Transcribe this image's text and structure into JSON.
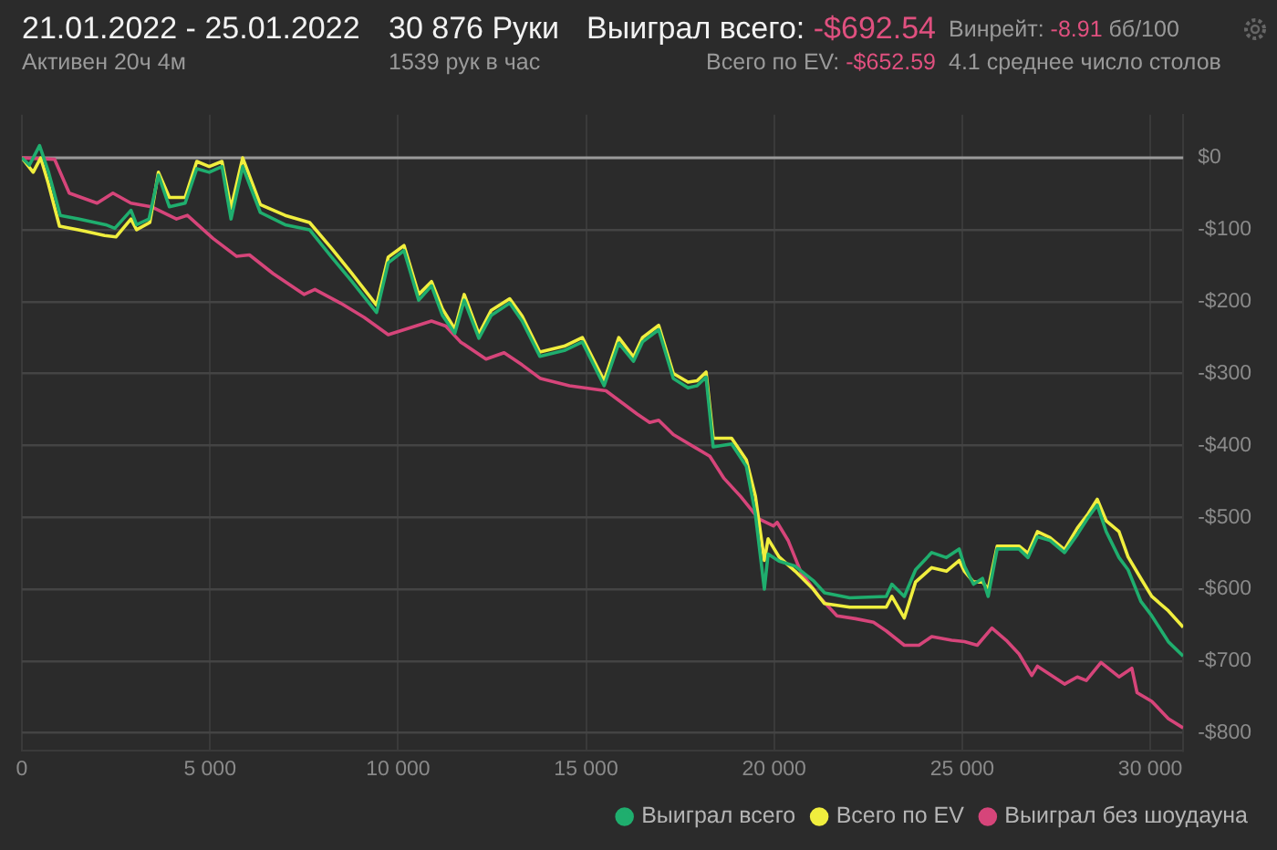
{
  "chart_data": {
    "type": "line",
    "title": "21.01.2022 - 25.01.2022",
    "subtitle": "Активен 20ч 4м",
    "annotations": [
      "30 876 Руки",
      "1539 рук в час",
      "Выиграл всего: -$692.54",
      "Всего по EV: -$652.59",
      "Винрейт: -8.91 бб/100",
      "4.1 среднее число столов"
    ],
    "xlim": [
      0,
      30876
    ],
    "xticks": [
      0,
      {
        "value": 5000,
        "label": "5 000"
      },
      {
        "value": 10000,
        "label": "10 000"
      },
      {
        "value": 15000,
        "label": "15 000"
      },
      {
        "value": 20000,
        "label": "20 000"
      },
      {
        "value": 25000,
        "label": "25 000"
      },
      {
        "value": 30000,
        "label": "30 000"
      }
    ],
    "ylim": [
      -825,
      60
    ],
    "yticks": [
      {
        "value": -800,
        "label": "-$800"
      },
      {
        "value": -700,
        "label": "-$700"
      },
      {
        "value": -600,
        "label": "-$600"
      },
      {
        "value": -500,
        "label": "-$500"
      },
      {
        "value": -400,
        "label": "-$400"
      },
      {
        "value": -300,
        "label": "-$300"
      },
      {
        "value": -200,
        "label": "-$200"
      },
      {
        "value": -100,
        "label": "-$100"
      },
      {
        "value": 0,
        "label": "$0"
      }
    ],
    "grid": true,
    "legend": "bottom right",
    "marker": "none",
    "line_style": "solid",
    "ref_lines": [
      {
        "axis": "y",
        "value": 0,
        "color": "#9a9a9a"
      }
    ],
    "series": [
      {
        "name": "Выиграл всего",
        "color": "#1fae6e",
        "x": [
          0,
          200,
          470,
          710,
          1020,
          1500,
          2230,
          2470,
          2900,
          3050,
          3380,
          3630,
          3920,
          4340,
          4650,
          4980,
          5320,
          5560,
          5870,
          6340,
          7000,
          7650,
          8220,
          8760,
          9430,
          9740,
          10160,
          10550,
          10890,
          11180,
          11510,
          11760,
          12150,
          12480,
          12970,
          13300,
          13770,
          14420,
          14900,
          15480,
          15870,
          16260,
          16500,
          16930,
          17320,
          17710,
          17950,
          18190,
          18380,
          18870,
          19260,
          19500,
          19740,
          19840,
          20130,
          20560,
          21040,
          21340,
          22010,
          22980,
          23130,
          23460,
          23760,
          24190,
          24580,
          24920,
          25060,
          25300,
          25540,
          25690,
          25930,
          26510,
          26750,
          27000,
          27330,
          27720,
          28060,
          28350,
          28590,
          28830,
          29170,
          29410,
          29750,
          30040,
          30480,
          30876
        ],
        "values": [
          0,
          -10,
          17,
          -20,
          -80,
          -85,
          -93,
          -98,
          -73,
          -93,
          -85,
          -24,
          -68,
          -63,
          -15,
          -20,
          -12,
          -85,
          -12,
          -76,
          -93,
          -100,
          -137,
          -171,
          -215,
          -146,
          -129,
          -198,
          -178,
          -219,
          -244,
          -198,
          -251,
          -219,
          -202,
          -227,
          -276,
          -268,
          -256,
          -317,
          -258,
          -283,
          -256,
          -239,
          -307,
          -320,
          -317,
          -305,
          -402,
          -398,
          -429,
          -495,
          -600,
          -551,
          -561,
          -568,
          -588,
          -605,
          -612,
          -610,
          -593,
          -610,
          -573,
          -549,
          -556,
          -544,
          -568,
          -593,
          -585,
          -610,
          -544,
          -544,
          -556,
          -527,
          -532,
          -549,
          -524,
          -500,
          -483,
          -520,
          -556,
          -573,
          -617,
          -637,
          -673,
          -693
        ]
      },
      {
        "name": "Всего по EV",
        "color": "#f0ee3e",
        "x": [
          0,
          300,
          500,
          700,
          1000,
          1500,
          2200,
          2500,
          2900,
          3050,
          3400,
          3630,
          3920,
          4340,
          4650,
          4980,
          5320,
          5560,
          5870,
          6340,
          7000,
          7650,
          8220,
          8760,
          9430,
          9740,
          10160,
          10550,
          10890,
          11180,
          11510,
          11760,
          12150,
          12480,
          12970,
          13300,
          13770,
          14420,
          14900,
          15480,
          15870,
          16260,
          16500,
          16930,
          17320,
          17710,
          17950,
          18190,
          18380,
          18870,
          19260,
          19500,
          19740,
          19840,
          20130,
          20560,
          21040,
          21340,
          22010,
          22980,
          23130,
          23460,
          23760,
          24190,
          24580,
          24920,
          25060,
          25300,
          25540,
          25690,
          25930,
          26510,
          26750,
          27000,
          27330,
          27720,
          28060,
          28350,
          28590,
          28830,
          29170,
          29410,
          29750,
          30040,
          30480,
          30876
        ],
        "values": [
          0,
          -20,
          0,
          -35,
          -95,
          -100,
          -108,
          -110,
          -85,
          -100,
          -90,
          -20,
          -55,
          -55,
          -5,
          -12,
          -5,
          -70,
          0,
          -65,
          -80,
          -90,
          -125,
          -160,
          -205,
          -138,
          -122,
          -190,
          -172,
          -210,
          -238,
          -190,
          -245,
          -212,
          -196,
          -220,
          -270,
          -262,
          -250,
          -310,
          -250,
          -277,
          -250,
          -233,
          -300,
          -312,
          -310,
          -298,
          -390,
          -390,
          -420,
          -470,
          -560,
          -530,
          -555,
          -575,
          -600,
          -620,
          -625,
          -625,
          -610,
          -640,
          -590,
          -570,
          -575,
          -560,
          -575,
          -590,
          -590,
          -600,
          -540,
          -540,
          -550,
          -520,
          -528,
          -545,
          -515,
          -495,
          -475,
          -505,
          -520,
          -555,
          -585,
          -610,
          -630,
          -653
        ]
      },
      {
        "name": "Выиграл без шоудауна",
        "color": "#d6457a",
        "x": [
          0,
          870,
          1260,
          2000,
          2420,
          2900,
          3440,
          4110,
          4400,
          5080,
          5710,
          6050,
          6680,
          7500,
          7790,
          8470,
          9100,
          9740,
          10890,
          11270,
          11660,
          12340,
          12820,
          13300,
          13790,
          14560,
          15530,
          16350,
          16690,
          16930,
          17320,
          18290,
          18670,
          19110,
          19590,
          19980,
          20080,
          20370,
          20710,
          21190,
          21670,
          22160,
          22640,
          22980,
          23460,
          23850,
          24190,
          24720,
          25060,
          25400,
          25790,
          26170,
          26510,
          26850,
          27000,
          27720,
          28060,
          28300,
          28690,
          29170,
          29510,
          29650,
          30040,
          30480,
          30876
        ],
        "values": [
          0,
          -2,
          -49,
          -63,
          -49,
          -63,
          -68,
          -85,
          -80,
          -112,
          -137,
          -135,
          -161,
          -190,
          -183,
          -202,
          -222,
          -246,
          -227,
          -234,
          -256,
          -280,
          -271,
          -288,
          -307,
          -317,
          -324,
          -356,
          -368,
          -365,
          -385,
          -415,
          -446,
          -471,
          -502,
          -512,
          -507,
          -532,
          -576,
          -610,
          -637,
          -641,
          -646,
          -658,
          -678,
          -678,
          -666,
          -671,
          -673,
          -678,
          -654,
          -671,
          -690,
          -720,
          -707,
          -732,
          -722,
          -727,
          -702,
          -722,
          -710,
          -744,
          -756,
          -780,
          -793
        ]
      }
    ]
  }
}
